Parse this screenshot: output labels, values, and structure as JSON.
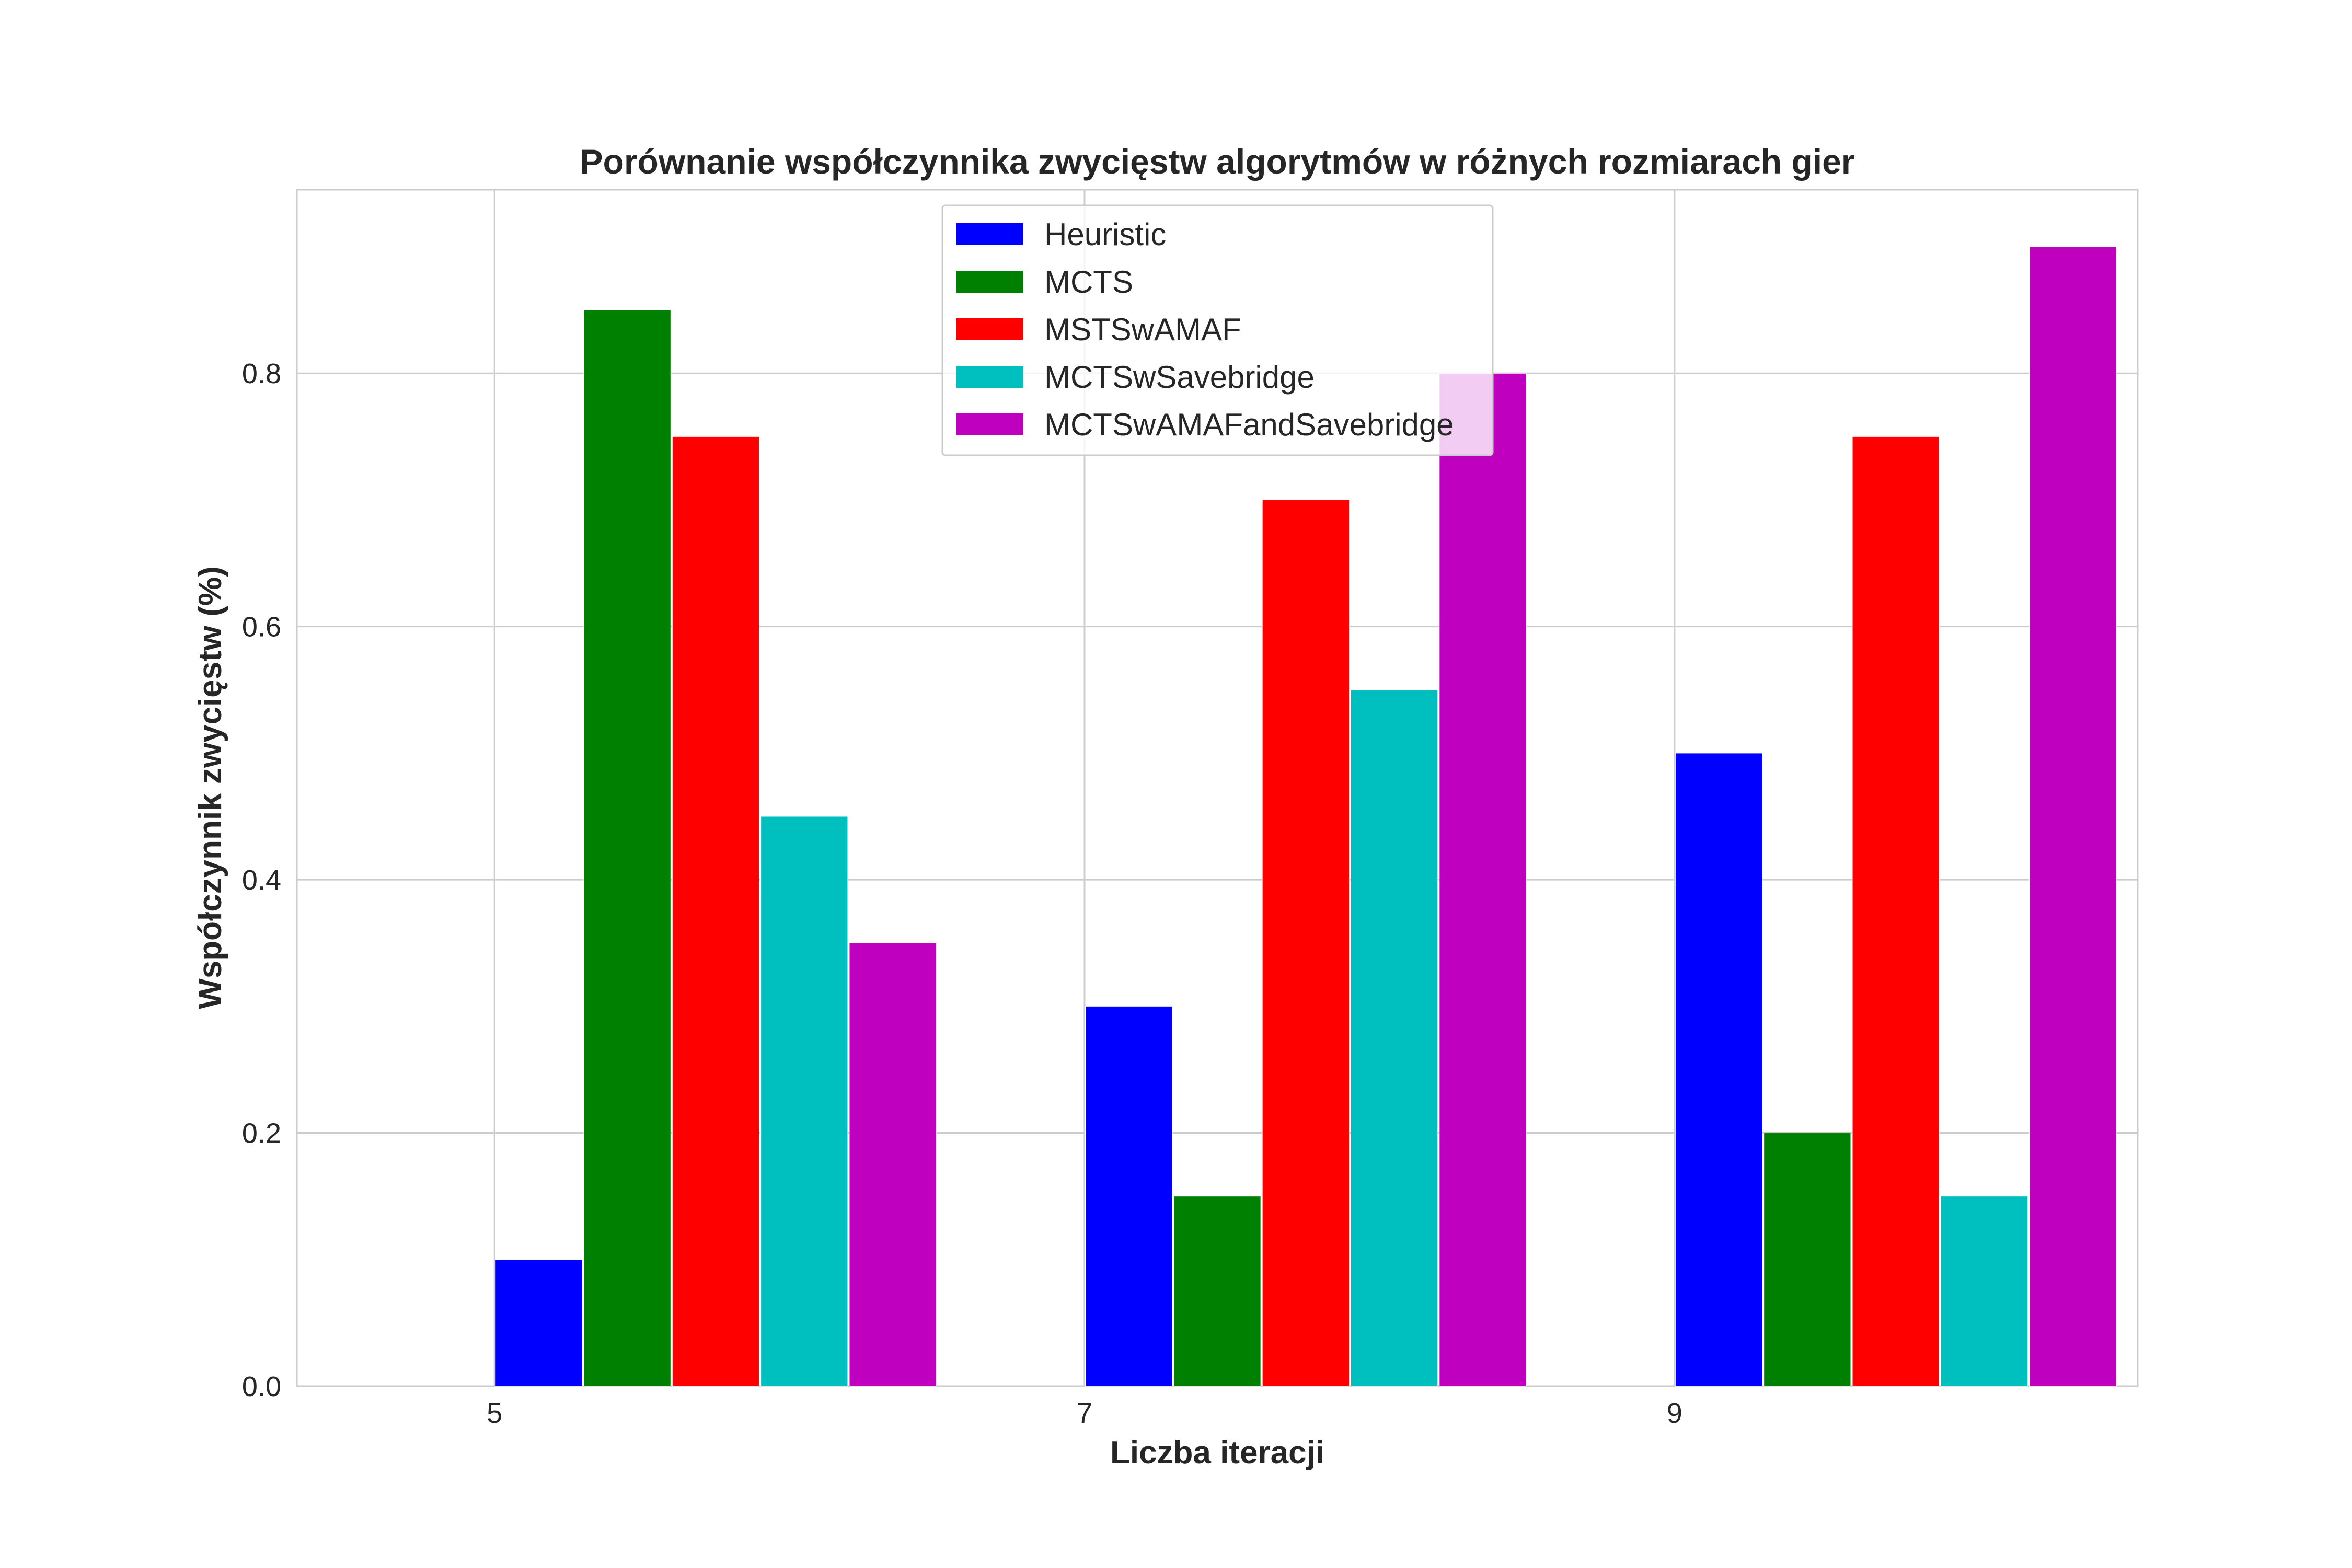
{
  "chart_data": {
    "type": "bar",
    "title": "Porównanie współczynnika zwycięstw algorytmów w różnych rozmiarach gier",
    "xlabel": "Liczba iteracji",
    "ylabel": "Współczynnik zwycięstw (%)",
    "categories": [
      "5",
      "7",
      "9"
    ],
    "ylim": [
      0,
      0.945
    ],
    "yticks": [
      "0.0",
      "0.2",
      "0.4",
      "0.6",
      "0.8"
    ],
    "grid": true,
    "legend_position": "top-center",
    "series": [
      {
        "name": "Heuristic",
        "color": "#0000ff",
        "values": [
          0.1,
          0.3,
          0.5
        ]
      },
      {
        "name": "MCTS",
        "color": "#008000",
        "values": [
          0.85,
          0.15,
          0.2
        ]
      },
      {
        "name": "MSTSwAMAF",
        "color": "#ff0000",
        "values": [
          0.75,
          0.7,
          0.75
        ]
      },
      {
        "name": "MCTSwSavebridge",
        "color": "#00bfbf",
        "values": [
          0.45,
          0.55,
          0.15
        ]
      },
      {
        "name": "MCTSwAMAFandSavebridge",
        "color": "#bf00bf",
        "values": [
          0.35,
          0.8,
          0.9
        ]
      }
    ]
  }
}
